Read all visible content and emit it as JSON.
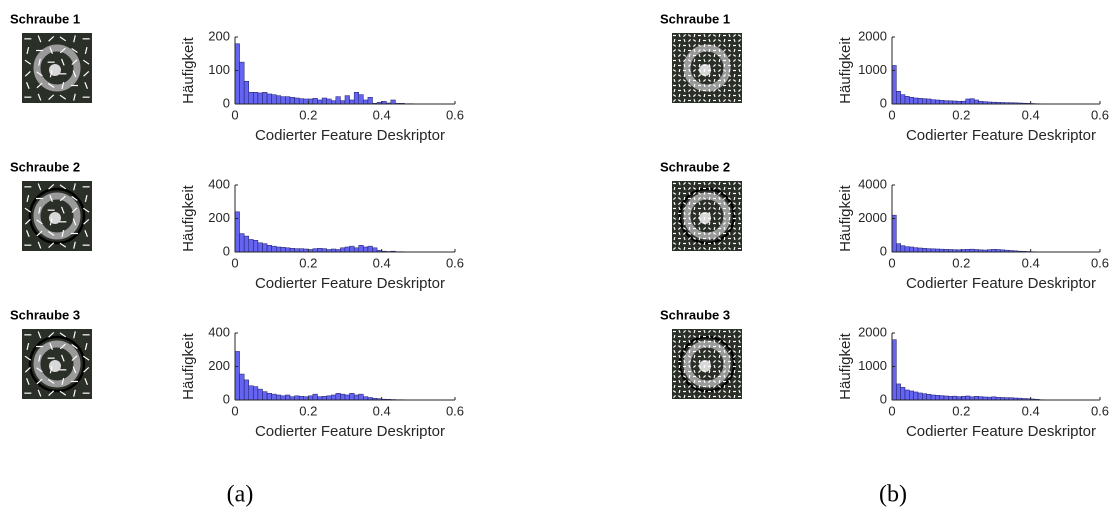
{
  "chart_data": [
    {
      "type": "histogram",
      "xlabel": "Codierter Feature Deskriptor",
      "ylabel": "Häufigkeit",
      "color": "#6464f0",
      "bins": [
        0,
        0.0125,
        0.025,
        0.0375,
        0.05,
        0.0625,
        0.075,
        0.0875,
        0.1,
        0.1125,
        0.125,
        0.1375,
        0.15,
        0.1625,
        0.175,
        0.1875,
        0.2,
        0.2125,
        0.225,
        0.2375,
        0.25,
        0.2625,
        0.275,
        0.2875,
        0.3,
        0.3125,
        0.325,
        0.3375,
        0.35,
        0.3625,
        0.375,
        0.3875,
        0.4,
        0.4125,
        0.425,
        0.4375,
        0.45,
        0.4625,
        0.475,
        0.4875,
        0.5
      ],
      "values": [
        180,
        125,
        68,
        35,
        35,
        33,
        35,
        30,
        28,
        25,
        22,
        22,
        20,
        18,
        16,
        15,
        15,
        17,
        12,
        18,
        15,
        10,
        22,
        10,
        25,
        12,
        35,
        28,
        12,
        20,
        2,
        5,
        8,
        3,
        12,
        2,
        2,
        1,
        1,
        0
      ],
      "xlim": [
        0,
        0.6
      ],
      "xticks": [
        0,
        0.2,
        0.4,
        0.6
      ],
      "ylim": [
        0,
        200
      ],
      "yticks": [
        0,
        100,
        200
      ]
    },
    {
      "type": "histogram",
      "xlabel": "Codierter Feature Deskriptor",
      "ylabel": "Häufigkeit",
      "color": "#6464f0",
      "bins": [
        0,
        0.0125,
        0.025,
        0.0375,
        0.05,
        0.0625,
        0.075,
        0.0875,
        0.1,
        0.1125,
        0.125,
        0.1375,
        0.15,
        0.1625,
        0.175,
        0.1875,
        0.2,
        0.2125,
        0.225,
        0.2375,
        0.25,
        0.2625,
        0.275,
        0.2875,
        0.3,
        0.3125,
        0.325,
        0.3375,
        0.35,
        0.3625,
        0.375,
        0.3875,
        0.4,
        0.4125,
        0.425,
        0.4375,
        0.45,
        0.4625,
        0.475,
        0.4875,
        0.5
      ],
      "values": [
        240,
        110,
        95,
        75,
        70,
        55,
        50,
        40,
        35,
        30,
        28,
        25,
        22,
        20,
        20,
        18,
        15,
        20,
        22,
        20,
        15,
        18,
        15,
        25,
        30,
        35,
        25,
        40,
        30,
        35,
        25,
        10,
        5,
        3,
        5,
        2,
        2,
        1,
        1,
        0
      ],
      "xlim": [
        0,
        0.6
      ],
      "xticks": [
        0,
        0.2,
        0.4,
        0.6
      ],
      "ylim": [
        0,
        400
      ],
      "yticks": [
        0,
        200,
        400
      ]
    },
    {
      "type": "histogram",
      "xlabel": "Codierter Feature Deskriptor",
      "ylabel": "Häufigkeit",
      "color": "#6464f0",
      "bins": [
        0,
        0.0125,
        0.025,
        0.0375,
        0.05,
        0.0625,
        0.075,
        0.0875,
        0.1,
        0.1125,
        0.125,
        0.1375,
        0.15,
        0.1625,
        0.175,
        0.1875,
        0.2,
        0.2125,
        0.225,
        0.2375,
        0.25,
        0.2625,
        0.275,
        0.2875,
        0.3,
        0.3125,
        0.325,
        0.3375,
        0.35,
        0.3625,
        0.375,
        0.3875,
        0.4,
        0.4125,
        0.425,
        0.4375,
        0.45,
        0.4625,
        0.475,
        0.4875,
        0.5
      ],
      "values": [
        290,
        155,
        120,
        85,
        80,
        65,
        50,
        40,
        35,
        30,
        25,
        30,
        20,
        25,
        22,
        20,
        25,
        35,
        20,
        22,
        25,
        30,
        40,
        35,
        30,
        40,
        30,
        35,
        20,
        15,
        10,
        8,
        5,
        4,
        3,
        2,
        2,
        1,
        1,
        0
      ],
      "xlim": [
        0,
        0.6
      ],
      "xticks": [
        0,
        0.2,
        0.4,
        0.6
      ],
      "ylim": [
        0,
        400
      ],
      "yticks": [
        0,
        200,
        400
      ]
    },
    {
      "type": "histogram",
      "xlabel": "Codierter Feature Deskriptor",
      "ylabel": "Häufigkeit",
      "color": "#6464f0",
      "bins": [
        0,
        0.0125,
        0.025,
        0.0375,
        0.05,
        0.0625,
        0.075,
        0.0875,
        0.1,
        0.1125,
        0.125,
        0.1375,
        0.15,
        0.1625,
        0.175,
        0.1875,
        0.2,
        0.2125,
        0.225,
        0.2375,
        0.25,
        0.2625,
        0.275,
        0.2875,
        0.3,
        0.3125,
        0.325,
        0.3375,
        0.35,
        0.3625,
        0.375,
        0.3875,
        0.4,
        0.4125,
        0.425,
        0.4375,
        0.45,
        0.4625,
        0.475,
        0.4875,
        0.5
      ],
      "values": [
        1150,
        380,
        280,
        230,
        200,
        180,
        170,
        160,
        150,
        130,
        120,
        110,
        100,
        95,
        90,
        80,
        85,
        150,
        160,
        120,
        80,
        70,
        60,
        55,
        50,
        45,
        40,
        40,
        35,
        30,
        25,
        20,
        15,
        10,
        8,
        6,
        4,
        3,
        2,
        1
      ],
      "xlim": [
        0,
        0.6
      ],
      "xticks": [
        0,
        0.2,
        0.4,
        0.6
      ],
      "ylim": [
        0,
        2000
      ],
      "yticks": [
        0,
        1000,
        2000
      ]
    },
    {
      "type": "histogram",
      "xlabel": "Codierter Feature Deskriptor",
      "ylabel": "Häufigkeit",
      "color": "#6464f0",
      "bins": [
        0,
        0.0125,
        0.025,
        0.0375,
        0.05,
        0.0625,
        0.075,
        0.0875,
        0.1,
        0.1125,
        0.125,
        0.1375,
        0.15,
        0.1625,
        0.175,
        0.1875,
        0.2,
        0.2125,
        0.225,
        0.2375,
        0.25,
        0.2625,
        0.275,
        0.2875,
        0.3,
        0.3125,
        0.325,
        0.3375,
        0.35,
        0.3625,
        0.375,
        0.3875,
        0.4,
        0.4125,
        0.425,
        0.4375,
        0.45,
        0.4625,
        0.475,
        0.4875,
        0.5
      ],
      "values": [
        2200,
        500,
        380,
        320,
        300,
        260,
        240,
        220,
        200,
        190,
        180,
        170,
        160,
        150,
        140,
        130,
        150,
        160,
        170,
        150,
        130,
        120,
        140,
        160,
        150,
        130,
        110,
        90,
        70,
        50,
        40,
        30,
        20,
        15,
        10,
        8,
        5,
        3,
        2,
        1
      ],
      "xlim": [
        0,
        0.6
      ],
      "xticks": [
        0,
        0.2,
        0.4,
        0.6
      ],
      "ylim": [
        0,
        4000
      ],
      "yticks": [
        0,
        2000,
        4000
      ]
    },
    {
      "type": "histogram",
      "xlabel": "Codierter Feature Deskriptor",
      "ylabel": "Häufigkeit",
      "color": "#6464f0",
      "bins": [
        0,
        0.0125,
        0.025,
        0.0375,
        0.05,
        0.0625,
        0.075,
        0.0875,
        0.1,
        0.1125,
        0.125,
        0.1375,
        0.15,
        0.1625,
        0.175,
        0.1875,
        0.2,
        0.2125,
        0.225,
        0.2375,
        0.25,
        0.2625,
        0.275,
        0.2875,
        0.3,
        0.3125,
        0.325,
        0.3375,
        0.35,
        0.3625,
        0.375,
        0.3875,
        0.4,
        0.4125,
        0.425,
        0.4375,
        0.45,
        0.4625,
        0.475,
        0.4875,
        0.5
      ],
      "values": [
        1800,
        480,
        380,
        300,
        270,
        240,
        210,
        190,
        170,
        150,
        140,
        130,
        120,
        110,
        115,
        100,
        110,
        120,
        95,
        110,
        100,
        90,
        85,
        95,
        80,
        75,
        70,
        70,
        60,
        55,
        45,
        40,
        30,
        20,
        10,
        5,
        3,
        2,
        1,
        0
      ],
      "xlim": [
        0,
        0.6
      ],
      "xticks": [
        0,
        0.2,
        0.4,
        0.6
      ],
      "ylim": [
        0,
        2000
      ],
      "yticks": [
        0,
        1000,
        2000
      ]
    }
  ],
  "images": [
    {
      "label": "Schraube 1"
    },
    {
      "label": "Schraube 2"
    },
    {
      "label": "Schraube 3"
    },
    {
      "label": "Schraube 1"
    },
    {
      "label": "Schraube 2"
    },
    {
      "label": "Schraube 3"
    }
  ],
  "captions": [
    "(a)",
    "(b)"
  ]
}
